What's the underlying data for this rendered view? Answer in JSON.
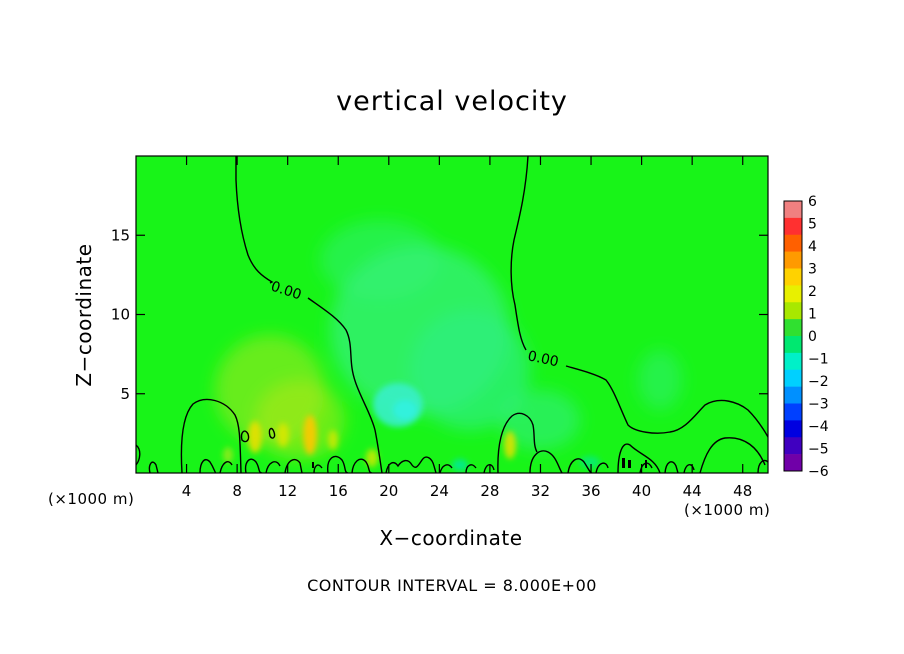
{
  "chart_data": {
    "type": "heatmap",
    "title": "vertical velocity",
    "xlabel": "X−coordinate",
    "ylabel": "Z−coordinate",
    "x_unit_left": "(×1000 m)",
    "x_unit_right": "(×1000 m)",
    "xlim": [
      0,
      50
    ],
    "ylim": [
      0,
      20
    ],
    "x_ticks": [
      4,
      8,
      12,
      16,
      20,
      24,
      28,
      32,
      36,
      40,
      44,
      48
    ],
    "y_ticks": [
      5,
      10,
      15
    ],
    "contour_labels": [
      "0.00",
      "0.00"
    ],
    "footnote": "CONTOUR INTERVAL = 8.000E+00",
    "colorbar": {
      "ticks": [
        "6",
        "5",
        "4",
        "3",
        "2",
        "1",
        "0",
        "−1",
        "−2",
        "−3",
        "−4",
        "−5",
        "−6"
      ],
      "colors": [
        "#f08080",
        "#ff3030",
        "#ff6000",
        "#ff9a00",
        "#ffd200",
        "#e8f000",
        "#a8e800",
        "#30e030",
        "#00e870",
        "#00f0c8",
        "#00d0ff",
        "#0090ff",
        "#0040ff",
        "#0000e0",
        "#4000c0",
        "#7000a8"
      ]
    },
    "background_color": "#18f418"
  }
}
